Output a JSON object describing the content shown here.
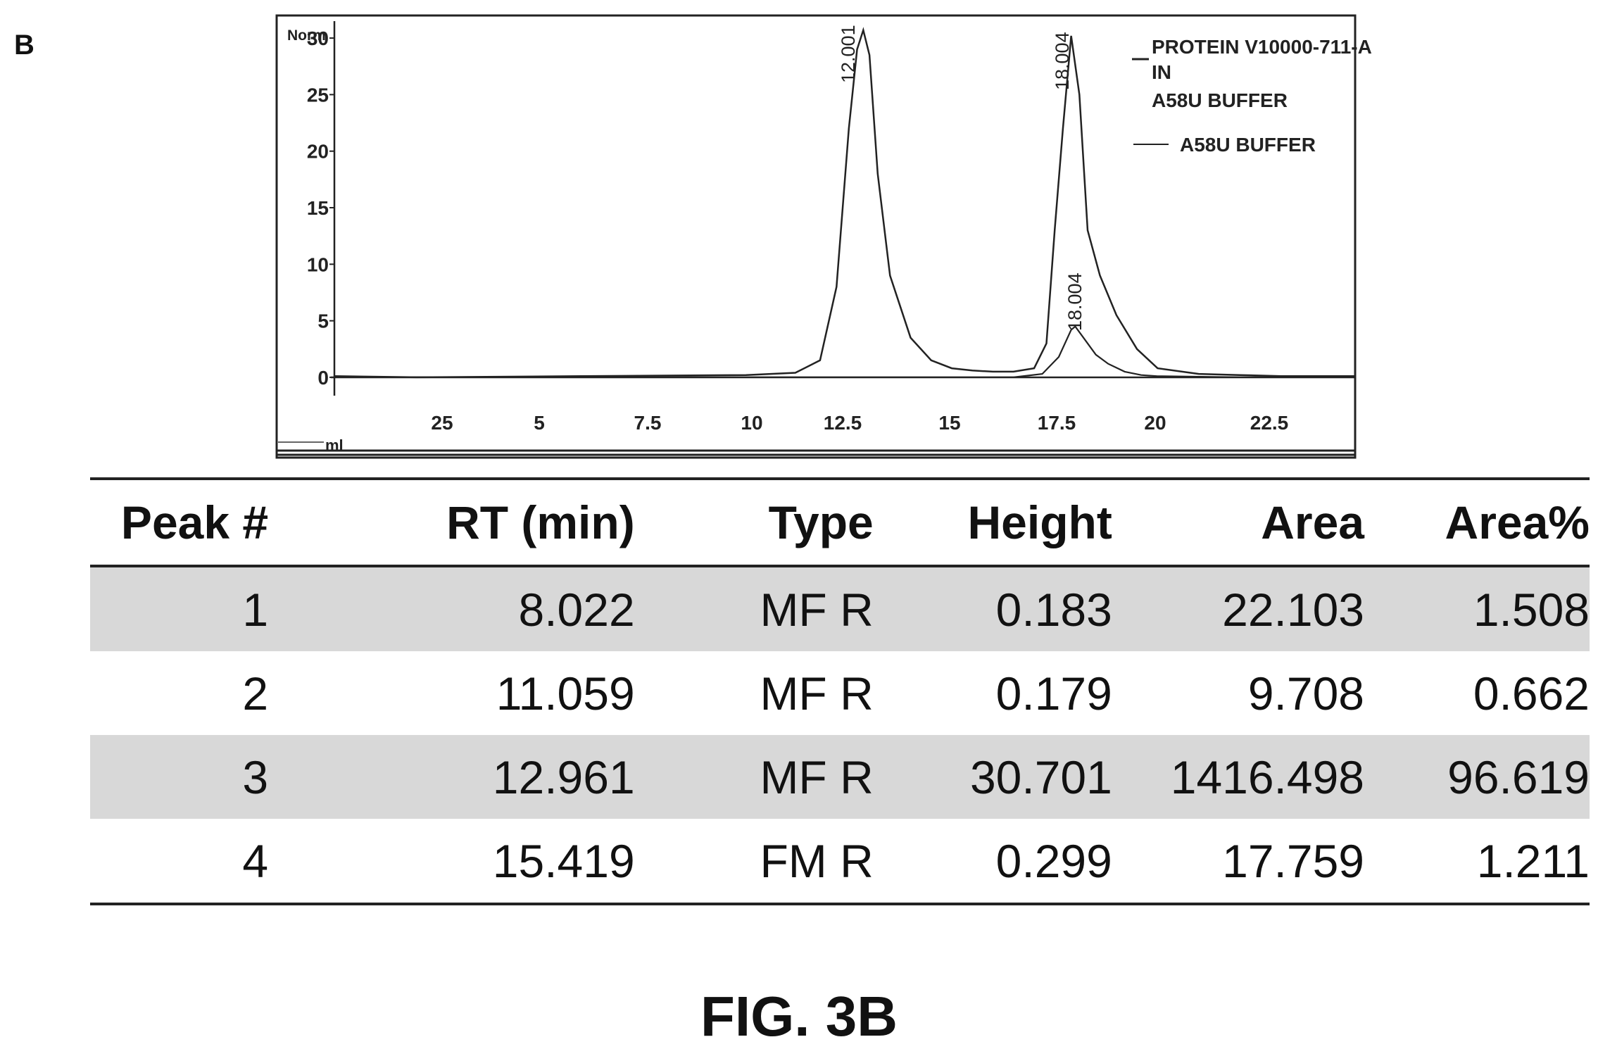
{
  "panel_label": "B",
  "chart_data": {
    "type": "line",
    "y_axis_title": "Norm",
    "x_axis_unit": "ml",
    "x_tick_labels": [
      "25",
      "5",
      "7.5",
      "10",
      "12.5",
      "15",
      "17.5",
      "20",
      "22.5"
    ],
    "y_ticks": [
      0,
      5,
      10,
      15,
      20,
      25,
      30
    ],
    "xlim": [
      0,
      24.8
    ],
    "ylim": [
      -1,
      31.5
    ],
    "legend_position": "top-right",
    "series": [
      {
        "name": "PROTEIN V10000-711-A IN A58U BUFFER",
        "x": [
          0,
          2,
          4,
          6,
          8,
          10,
          11.2,
          11.8,
          12.2,
          12.5,
          12.7,
          12.85,
          13.0,
          13.2,
          13.5,
          14.0,
          14.5,
          15.0,
          15.5,
          16.0,
          16.5,
          17.0,
          17.3,
          17.5,
          17.7,
          17.9,
          18.1,
          18.3,
          18.6,
          19.0,
          19.5,
          20.0,
          21.0,
          22.0,
          23.0,
          24.8
        ],
        "y": [
          0.1,
          0.0,
          0.05,
          0.1,
          0.15,
          0.2,
          0.4,
          1.5,
          8,
          22,
          29,
          30.7,
          28.5,
          18,
          9,
          3.5,
          1.5,
          0.8,
          0.6,
          0.5,
          0.5,
          0.8,
          3,
          13,
          22,
          30.2,
          25,
          13,
          9,
          5.5,
          2.5,
          0.8,
          0.3,
          0.2,
          0.1,
          0.1
        ]
      },
      {
        "name": "A58U BUFFER",
        "x": [
          0,
          5,
          10,
          15,
          16.5,
          17.2,
          17.6,
          17.9,
          18.0,
          18.2,
          18.5,
          18.8,
          19.2,
          19.6,
          20.0,
          22.0,
          24.8
        ],
        "y": [
          0,
          0,
          0,
          0,
          0,
          0.3,
          1.8,
          4.2,
          4.5,
          3.5,
          2.0,
          1.2,
          0.5,
          0.2,
          0.1,
          0,
          0
        ]
      }
    ],
    "peak_labels": [
      "12.001",
      "18.004",
      "18.004"
    ]
  },
  "table": {
    "headers": [
      "Peak #",
      "RT (min)",
      "Type",
      "Height",
      "Area",
      "Area%"
    ],
    "rows": [
      [
        "1",
        "8.022",
        "MF R",
        "0.183",
        "22.103",
        "1.508"
      ],
      [
        "2",
        "11.059",
        "MF R",
        "0.179",
        "9.708",
        "0.662"
      ],
      [
        "3",
        "12.961",
        "MF R",
        "30.701",
        "1416.498",
        "96.619"
      ],
      [
        "4",
        "15.419",
        "FM R",
        "0.299",
        "17.759",
        "1.211"
      ]
    ]
  },
  "figure_caption": "FIG. 3B"
}
